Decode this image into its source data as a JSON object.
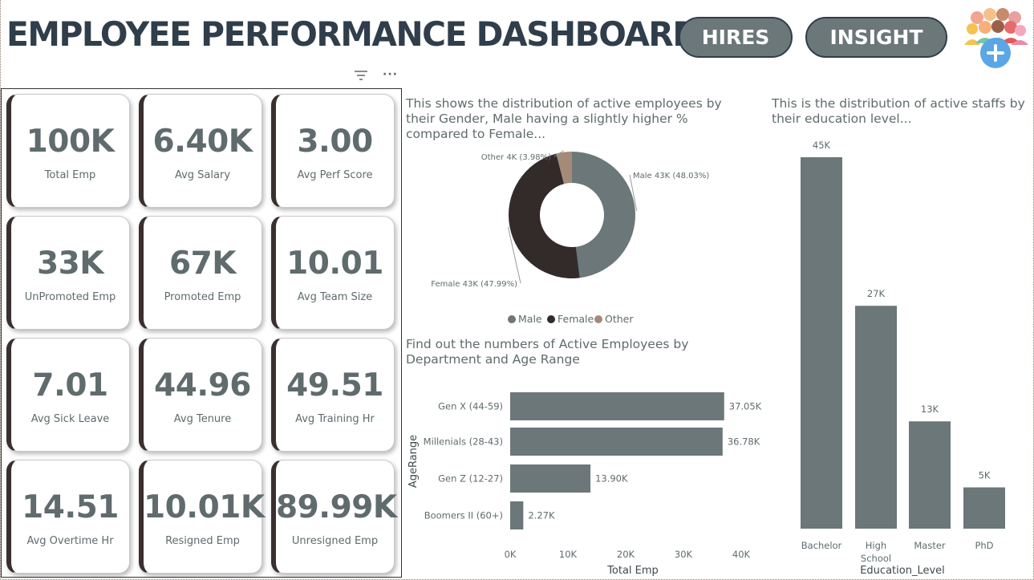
{
  "header": {
    "title": "EMPLOYEE PERFORMANCE DASHBOARD",
    "buttons": {
      "hires": "HIRES",
      "insight": "INSIGHT"
    }
  },
  "toolbar": {
    "filter_icon": "filter-icon",
    "more_icon": "more-options-icon",
    "more_label": "···"
  },
  "colors": {
    "primary": "#6b7779",
    "dark": "#332a2a",
    "other": "#a68a78",
    "title": "#2f3e4a"
  },
  "kpis": [
    {
      "value": "100K",
      "label": "Total Emp"
    },
    {
      "value": "6.40K",
      "label": "Avg Salary"
    },
    {
      "value": "3.00",
      "label": "Avg Perf Score"
    },
    {
      "value": "33K",
      "label": "UnPromoted Emp"
    },
    {
      "value": "67K",
      "label": "Promoted Emp"
    },
    {
      "value": "10.01",
      "label": "Avg Team Size"
    },
    {
      "value": "7.01",
      "label": "Avg Sick Leave"
    },
    {
      "value": "44.96",
      "label": "Avg Tenure"
    },
    {
      "value": "49.51",
      "label": "Avg Training Hr"
    },
    {
      "value": "14.51",
      "label": "Avg Overtime Hr"
    },
    {
      "value": "10.01K",
      "label": "Resigned Emp"
    },
    {
      "value": "89.99K",
      "label": "Unresigned Emp"
    }
  ],
  "chart_data": [
    {
      "type": "pie",
      "variant": "donut",
      "title": "This shows the distribution of active employees by their Gender, Male having a slightly higher % compared to Female...",
      "categories": [
        "Male",
        "Female",
        "Other"
      ],
      "values": [
        43,
        43,
        4
      ],
      "percents": [
        48.03,
        47.99,
        3.98
      ],
      "labels": [
        "Male 43K (48.03%)",
        "Female 43K (47.99%)",
        "Other 4K (3.98%)"
      ],
      "legend": [
        "Male",
        "Female",
        "Other"
      ],
      "legend_position": "bottom"
    },
    {
      "type": "bar",
      "orientation": "horizontal",
      "title": "Find out the numbers of Active Employees by Department and Age Range",
      "categories": [
        "Gen X (44-59)",
        "Millenials (28-43)",
        "Gen Z (12-27)",
        "Boomers II (60+)"
      ],
      "values": [
        37.05,
        36.78,
        13.9,
        2.27
      ],
      "value_labels": [
        "37.05K",
        "36.78K",
        "13.90K",
        "2.27K"
      ],
      "xlabel": "Total Emp",
      "ylabel": "AgeRange",
      "ticks": [
        "0K",
        "10K",
        "20K",
        "30K",
        "40K"
      ],
      "xlim": [
        0,
        40
      ]
    },
    {
      "type": "bar",
      "orientation": "vertical",
      "title": "This is the distribution of active staffs by their education level...",
      "categories": [
        "Bachelor",
        "High School",
        "Master",
        "PhD"
      ],
      "category_lines": [
        [
          "Bachelor"
        ],
        [
          "High",
          "School"
        ],
        [
          "Master"
        ],
        [
          "PhD"
        ]
      ],
      "values": [
        45,
        27,
        13,
        5
      ],
      "value_labels": [
        "45K",
        "27K",
        "13K",
        "5K"
      ],
      "xlabel": "Education_Level",
      "ylim": [
        0,
        45
      ]
    }
  ]
}
